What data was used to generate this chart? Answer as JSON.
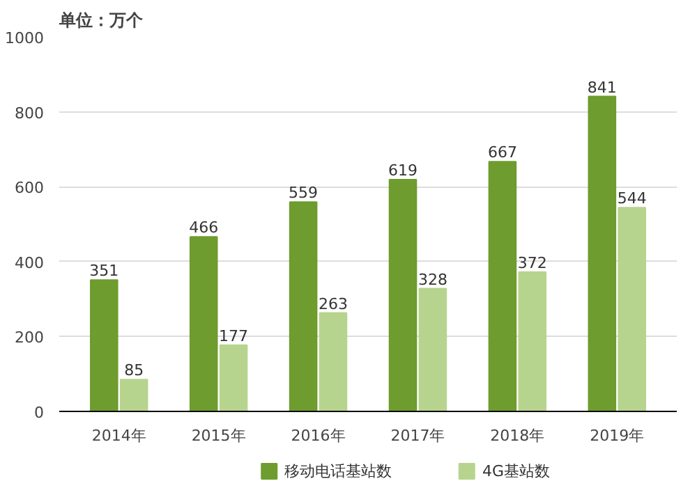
{
  "chart_data": {
    "type": "bar",
    "ylabel": "单位：万个",
    "categories": [
      "2014年",
      "2015年",
      "2016年",
      "2017年",
      "2018年",
      "2019年"
    ],
    "series": [
      {
        "name": "移动电话基站数",
        "color": "#6e9c2e",
        "values": [
          351,
          466,
          559,
          619,
          667,
          841
        ]
      },
      {
        "name": "4G基站数",
        "color": "#b7d48e",
        "values": [
          85,
          177,
          263,
          328,
          372,
          544
        ]
      }
    ],
    "ylim": [
      0,
      1000
    ],
    "yticks": [
      0,
      200,
      400,
      600,
      800,
      1000
    ],
    "grid": "y",
    "legend": "bottom",
    "data_labels": true
  }
}
